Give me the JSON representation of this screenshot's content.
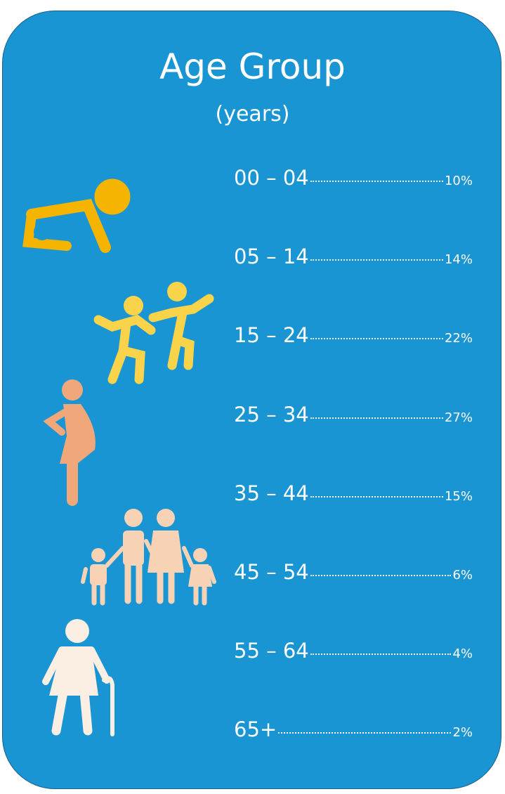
{
  "header": {
    "title": "Age Group",
    "subtitle": "(years)"
  },
  "rows": [
    {
      "label": "00 – 04",
      "value": "10%"
    },
    {
      "label": "05 – 14",
      "value": "14%"
    },
    {
      "label": "15 – 24",
      "value": "22%"
    },
    {
      "label": "25 – 34",
      "value": "27%"
    },
    {
      "label": "35 – 44",
      "value": "15%"
    },
    {
      "label": "45 – 54",
      "value": "6%"
    },
    {
      "label": "55 – 64",
      "value": "4%"
    },
    {
      "label": "65+",
      "value": "2%"
    }
  ]
}
